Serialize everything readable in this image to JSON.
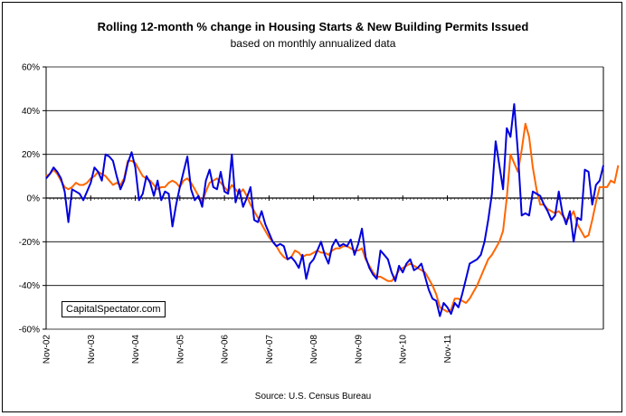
{
  "chart_data": {
    "type": "line",
    "title": "Rolling 12-month %  change in Housing Starts & New Building Permits Issued",
    "subtitle": "based on monthly annualized data",
    "source": "Source: U.S. Census Bureau",
    "watermark": "CapitalSpectator.com",
    "ylim": [
      -60,
      60
    ],
    "y_ticks": [
      60,
      40,
      20,
      0,
      -20,
      -40,
      -60
    ],
    "y_tick_labels": [
      "60%",
      "40%",
      "20%",
      "0%",
      "-20%",
      "-40%",
      "-60%"
    ],
    "x_tick_labels": [
      "Nov-02",
      "Nov-03",
      "Nov-04",
      "Nov-05",
      "Nov-06",
      "Nov-07",
      "Nov-08",
      "Nov-09",
      "Nov-10",
      "Nov-11"
    ],
    "grid": true,
    "colors": {
      "starts": "#0000dd",
      "permits": "#ff6600"
    },
    "series": [
      {
        "key": "starts",
        "values": [
          9,
          11,
          14,
          12,
          9,
          3,
          -11,
          4,
          3,
          2,
          -1,
          3,
          7,
          14,
          12,
          8,
          20,
          19,
          17,
          10,
          4,
          8,
          16,
          21,
          14,
          -1,
          2,
          10,
          7,
          1,
          8,
          -1,
          3,
          2,
          -13,
          -3,
          5,
          12,
          19,
          4,
          -1,
          1,
          -4,
          8,
          13,
          5,
          4,
          12,
          3,
          2,
          20,
          -2,
          4,
          -4,
          0,
          5,
          -10,
          -11,
          -6,
          -12,
          -16,
          -20,
          -22,
          -21,
          -22,
          -28,
          -27,
          -29,
          -32,
          -26,
          -37,
          -30,
          -28,
          -24,
          -20,
          -26,
          -30,
          -22,
          -19,
          -22,
          -21,
          -22,
          -19,
          -26,
          -21,
          -14,
          -27,
          -32,
          -35,
          -37,
          -24,
          -26,
          -28,
          -34,
          -38,
          -31,
          -34,
          -30,
          -28,
          -33,
          -32,
          -30,
          -36,
          -42,
          -46,
          -47,
          -54,
          -48,
          -50,
          -53,
          -48,
          -50,
          -44,
          -37,
          -30,
          -29,
          -28,
          -26,
          -20,
          -10,
          2,
          26,
          15,
          4,
          32,
          28,
          43,
          21,
          -8,
          -7,
          -8,
          3,
          2,
          1,
          -3,
          -6,
          -10,
          -8,
          3,
          -7,
          -12,
          -6,
          -20,
          -9,
          -10,
          13,
          12,
          -3,
          6,
          8,
          15
        ]
      },
      {
        "key": "permits",
        "values": [
          10,
          11,
          13,
          11,
          8,
          5,
          4,
          5,
          7,
          6,
          6,
          7,
          9,
          10,
          12,
          11,
          10,
          8,
          6,
          7,
          6,
          9,
          17,
          17,
          16,
          13,
          10,
          9,
          8,
          6,
          4,
          5,
          5,
          7,
          8,
          7,
          5,
          8,
          9,
          7,
          4,
          1,
          -2,
          3,
          7,
          8,
          9,
          7,
          5,
          3,
          6,
          4,
          2,
          4,
          1,
          -3,
          -6,
          -9,
          -12,
          -15,
          -18,
          -20,
          -22,
          -25,
          -27,
          -28,
          -27,
          -24,
          -25,
          -27,
          -26,
          -26,
          -25,
          -24,
          -25,
          -25,
          -26,
          -24,
          -23,
          -23,
          -22,
          -22,
          -23,
          -24,
          -24,
          -23,
          -28,
          -31,
          -34,
          -36,
          -36,
          -37,
          -38,
          -38,
          -36,
          -33,
          -32,
          -31,
          -30,
          -31,
          -32,
          -33,
          -34,
          -37,
          -40,
          -44,
          -50,
          -51,
          -52,
          -51,
          -46,
          -46,
          -47,
          -48,
          -46,
          -43,
          -40,
          -36,
          -32,
          -28,
          -26,
          -23,
          -20,
          -15,
          0,
          20,
          16,
          12,
          22,
          34,
          28,
          14,
          4,
          -3,
          -3,
          -5,
          -6,
          -7,
          -6,
          -8,
          -10,
          -9,
          -6,
          -12,
          -15,
          -18,
          -17,
          -10,
          -2,
          5,
          5,
          5,
          8,
          7,
          15
        ]
      }
    ]
  }
}
